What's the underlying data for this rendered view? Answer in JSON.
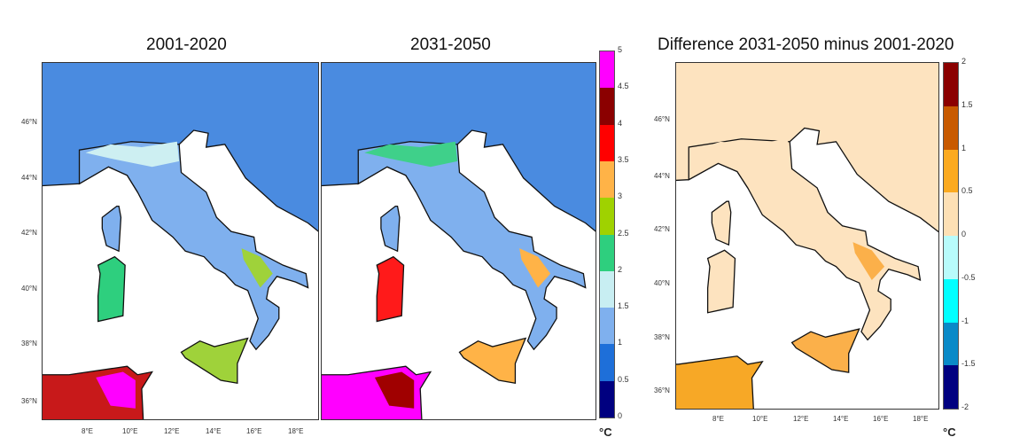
{
  "panels": [
    {
      "title": "2001-2020",
      "land": "#7fb0ee",
      "north": "#4a8be0",
      "po": "#cdeff2",
      "south": "#9fd23a",
      "hot": "#2ecf7e",
      "tunisia": "#c8191a",
      "tunisia2": "#ff00ff"
    },
    {
      "title": "2031-2050",
      "land": "#7fb0ee",
      "north": "#4a8be0",
      "po": "#3fd08a",
      "south": "#ffb347",
      "hot": "#ff1a1a",
      "tunisia": "#ff00ff",
      "tunisia2": "#a00000"
    },
    {
      "title": "Difference 2031-2050 minus 2001-2020",
      "land": "#fde3bf",
      "north": "#fde3bf",
      "po": "#fde3bf",
      "south": "#fbb04a",
      "hot": "#fde3bf",
      "tunisia": "#f7a826",
      "tunisia2": "#f7a826"
    }
  ],
  "lat_labels": [
    "46°N",
    "44°N",
    "42°N",
    "40°N",
    "38°N",
    "36°N"
  ],
  "lon_labels": [
    "8°E",
    "10°E",
    "12°E",
    "14°E",
    "16°E",
    "18°E"
  ],
  "colorbar_abs": {
    "ticks": [
      "0",
      "0.5",
      "1",
      "1.5",
      "2",
      "2.5",
      "3",
      "3.5",
      "4",
      "4.5",
      "5"
    ],
    "colors": [
      "#000080",
      "#1e6fd9",
      "#7fb0ee",
      "#c8eef2",
      "#2ecf7e",
      "#9fd200",
      "#ffb347",
      "#ff0000",
      "#8b0000",
      "#ff00ff"
    ],
    "unit": "°C"
  },
  "colorbar_diff": {
    "ticks": [
      "-2",
      "-1.5",
      "-1",
      "-0.5",
      "0",
      "0.5",
      "1",
      "1.5",
      "2"
    ],
    "colors": [
      "#000080",
      "#0a8ac8",
      "#00ffff",
      "#b8fbfb",
      "#fde0b5",
      "#fbaa20",
      "#c85a00",
      "#8b0000"
    ],
    "unit": "°C"
  }
}
